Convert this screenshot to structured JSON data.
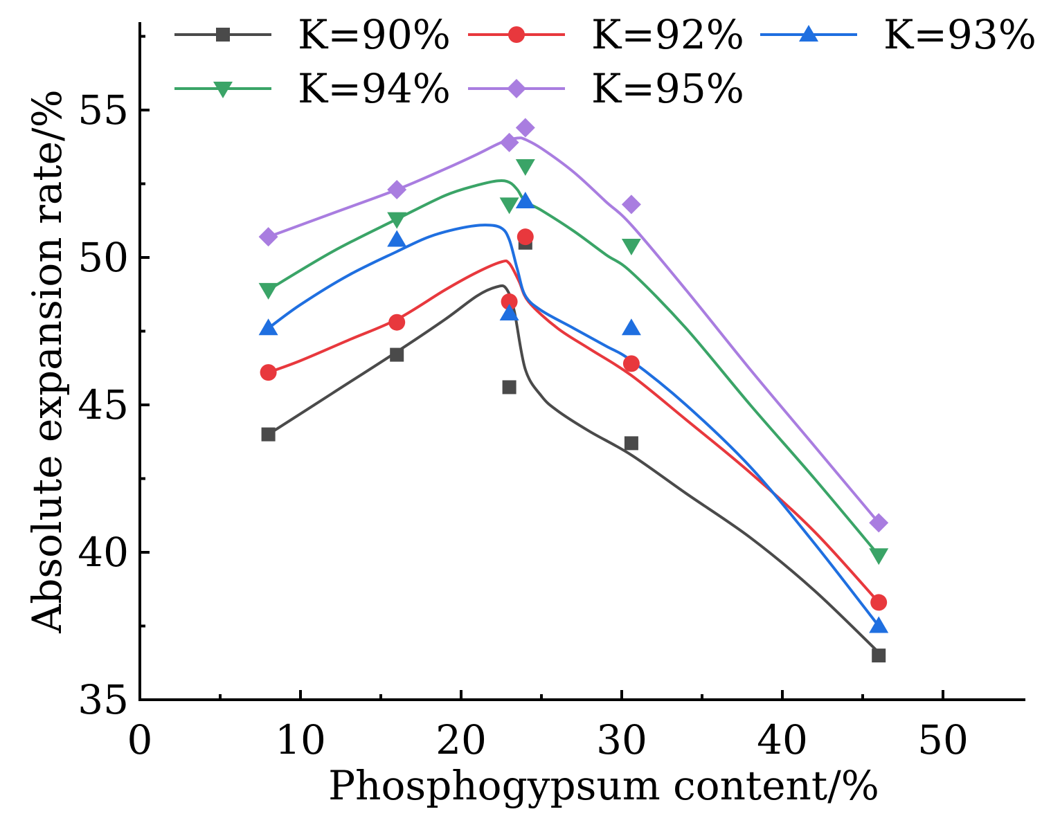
{
  "chart_data": {
    "type": "scatter",
    "title": "",
    "xlabel": "Phosphogypsum content/%",
    "ylabel": "Absolute expansion rate/%",
    "xlim": [
      0,
      55
    ],
    "ylim": [
      35,
      58
    ],
    "xticks": [
      0,
      10,
      20,
      30,
      40,
      50
    ],
    "xtick_labels": [
      "0",
      "10",
      "20",
      "30",
      "40",
      "50"
    ],
    "yticks": [
      35,
      40,
      45,
      50,
      55
    ],
    "ytick_labels": [
      "35",
      "40",
      "45",
      "50",
      "55"
    ],
    "x": [
      8,
      16,
      23,
      24,
      30.6,
      46
    ],
    "legend_position": "top",
    "series": [
      {
        "name": "K=90%",
        "marker": "square",
        "color": "#4a4a4a",
        "values": [
          44.0,
          46.7,
          45.6,
          50.5,
          43.7,
          36.5
        ],
        "fit_x": [
          8,
          12,
          16,
          19,
          21,
          22.2,
          22.8,
          23.3,
          24,
          25,
          26,
          28,
          30.6,
          34,
          38,
          42,
          46
        ],
        "fit_y": [
          44.0,
          45.4,
          46.8,
          47.9,
          48.7,
          49.0,
          48.95,
          48.2,
          46.2,
          45.3,
          44.8,
          44.1,
          43.3,
          42.0,
          40.5,
          38.7,
          36.6
        ]
      },
      {
        "name": "K=92%",
        "marker": "circle",
        "color": "#e8383d",
        "values": [
          46.1,
          47.8,
          48.5,
          50.7,
          46.4,
          38.3
        ],
        "fit_x": [
          8,
          10,
          13,
          16,
          19,
          21,
          22.5,
          23,
          23.6,
          24.2,
          26,
          28,
          30.6,
          34,
          38,
          42,
          46
        ],
        "fit_y": [
          46.1,
          46.5,
          47.2,
          47.9,
          48.9,
          49.5,
          49.85,
          49.8,
          49.2,
          48.5,
          47.6,
          46.9,
          46.0,
          44.5,
          42.7,
          40.7,
          38.3
        ]
      },
      {
        "name": "K=93%",
        "marker": "triangle-up",
        "color": "#1f6fe0",
        "values": [
          47.6,
          50.6,
          48.1,
          51.9,
          47.6,
          37.5
        ],
        "fit_x": [
          8,
          10,
          13,
          16,
          18,
          20,
          21.5,
          22.5,
          23,
          23.5,
          24,
          25,
          27,
          29,
          30.6,
          34,
          38,
          42,
          46
        ],
        "fit_y": [
          47.6,
          48.4,
          49.4,
          50.2,
          50.7,
          51.0,
          51.1,
          51.0,
          50.6,
          49.6,
          48.7,
          48.2,
          47.6,
          47.0,
          46.5,
          45.0,
          42.9,
          40.3,
          37.5
        ]
      },
      {
        "name": "K=94%",
        "marker": "triangle-down",
        "color": "#3aa467",
        "values": [
          48.9,
          51.3,
          51.8,
          53.1,
          50.4,
          39.9
        ],
        "fit_x": [
          8,
          12,
          16,
          19,
          21,
          22.3,
          23,
          23.5,
          24,
          25,
          27,
          29,
          30.6,
          34,
          38,
          42,
          46
        ],
        "fit_y": [
          48.9,
          50.2,
          51.3,
          52.1,
          52.45,
          52.6,
          52.55,
          52.3,
          51.9,
          51.6,
          50.9,
          50.1,
          49.5,
          47.6,
          45.0,
          42.5,
          39.9
        ]
      },
      {
        "name": "K=95%",
        "marker": "diamond",
        "color": "#a97de0",
        "values": [
          50.7,
          52.3,
          53.9,
          54.4,
          51.8,
          41.0
        ],
        "fit_x": [
          8,
          12,
          16,
          19,
          21,
          22.5,
          23.5,
          24,
          25,
          27,
          29,
          30.6,
          34,
          38,
          42,
          46
        ],
        "fit_y": [
          50.7,
          51.5,
          52.3,
          53.0,
          53.5,
          53.9,
          54.05,
          54.0,
          53.7,
          52.9,
          51.9,
          51.1,
          48.9,
          46.2,
          43.6,
          41.0
        ]
      }
    ]
  }
}
